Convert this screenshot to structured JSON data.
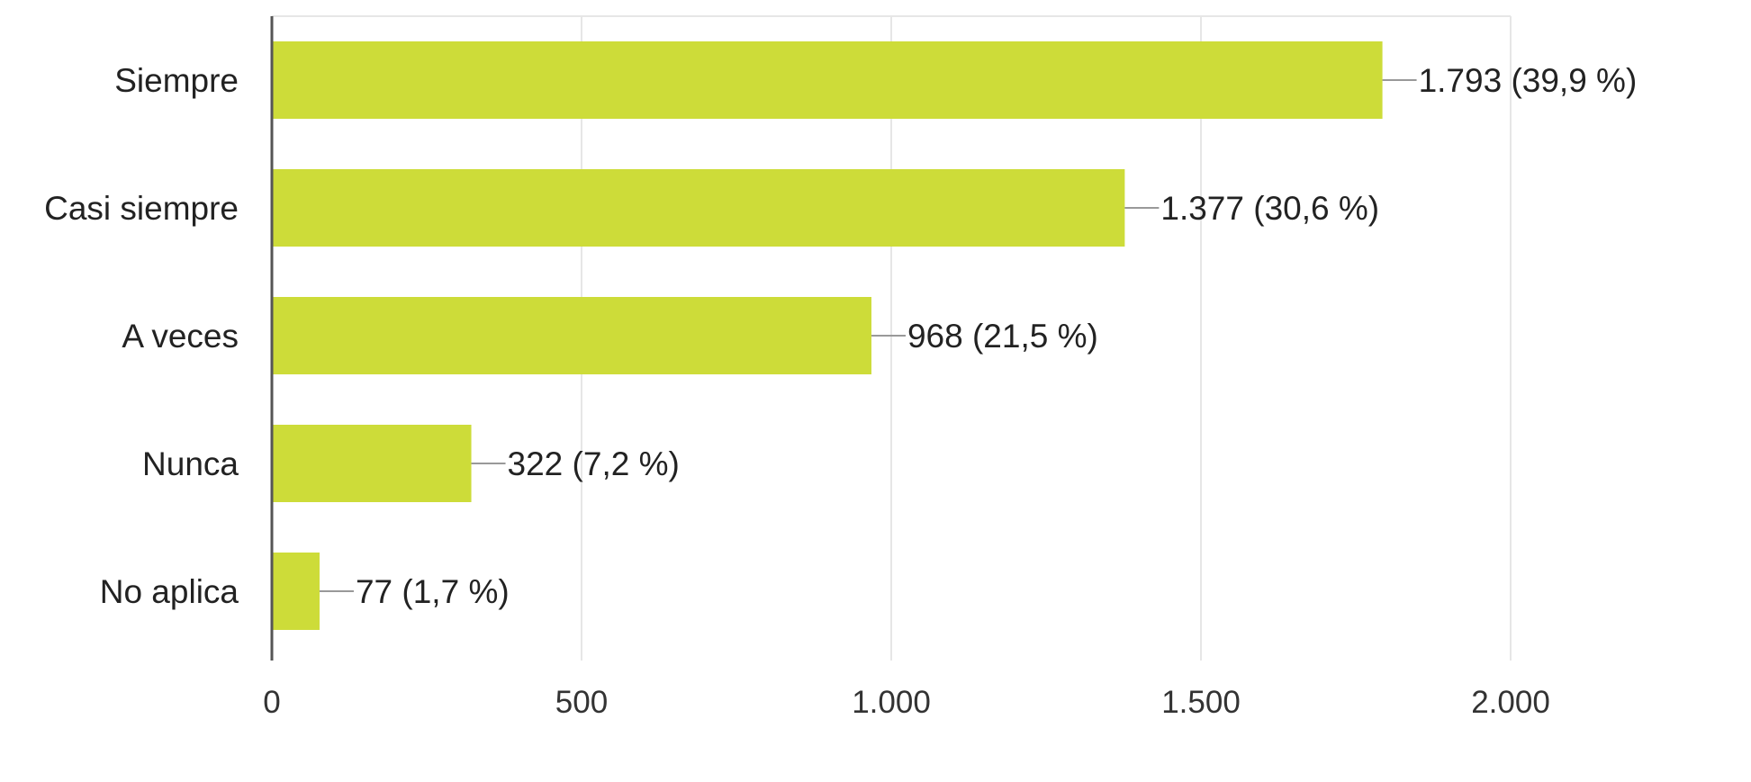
{
  "chart_data": {
    "type": "bar",
    "orientation": "horizontal",
    "categories": [
      "Siempre",
      "Casi siempre",
      "A veces",
      "Nunca",
      "No aplica"
    ],
    "values": [
      1793,
      1377,
      968,
      322,
      77
    ],
    "data_labels": [
      "1.793 (39,9 %)",
      "1.377 (30,6 %)",
      "968 (21,5 %)",
      "322 (7,2 %)",
      "77 (1,7 %)"
    ],
    "x_ticks": [
      0,
      500,
      1000,
      1500,
      2000
    ],
    "x_tick_labels": [
      "0",
      "500",
      "1.000",
      "1.500",
      "2.000"
    ],
    "xlim": [
      0,
      2000
    ],
    "grid": true,
    "legend": "none",
    "title": "",
    "xlabel": "",
    "ylabel": ""
  },
  "colors": {
    "bar": "#cddc39",
    "grid": "#e6e6e6",
    "axis": "#555555",
    "leader": "#999999"
  }
}
